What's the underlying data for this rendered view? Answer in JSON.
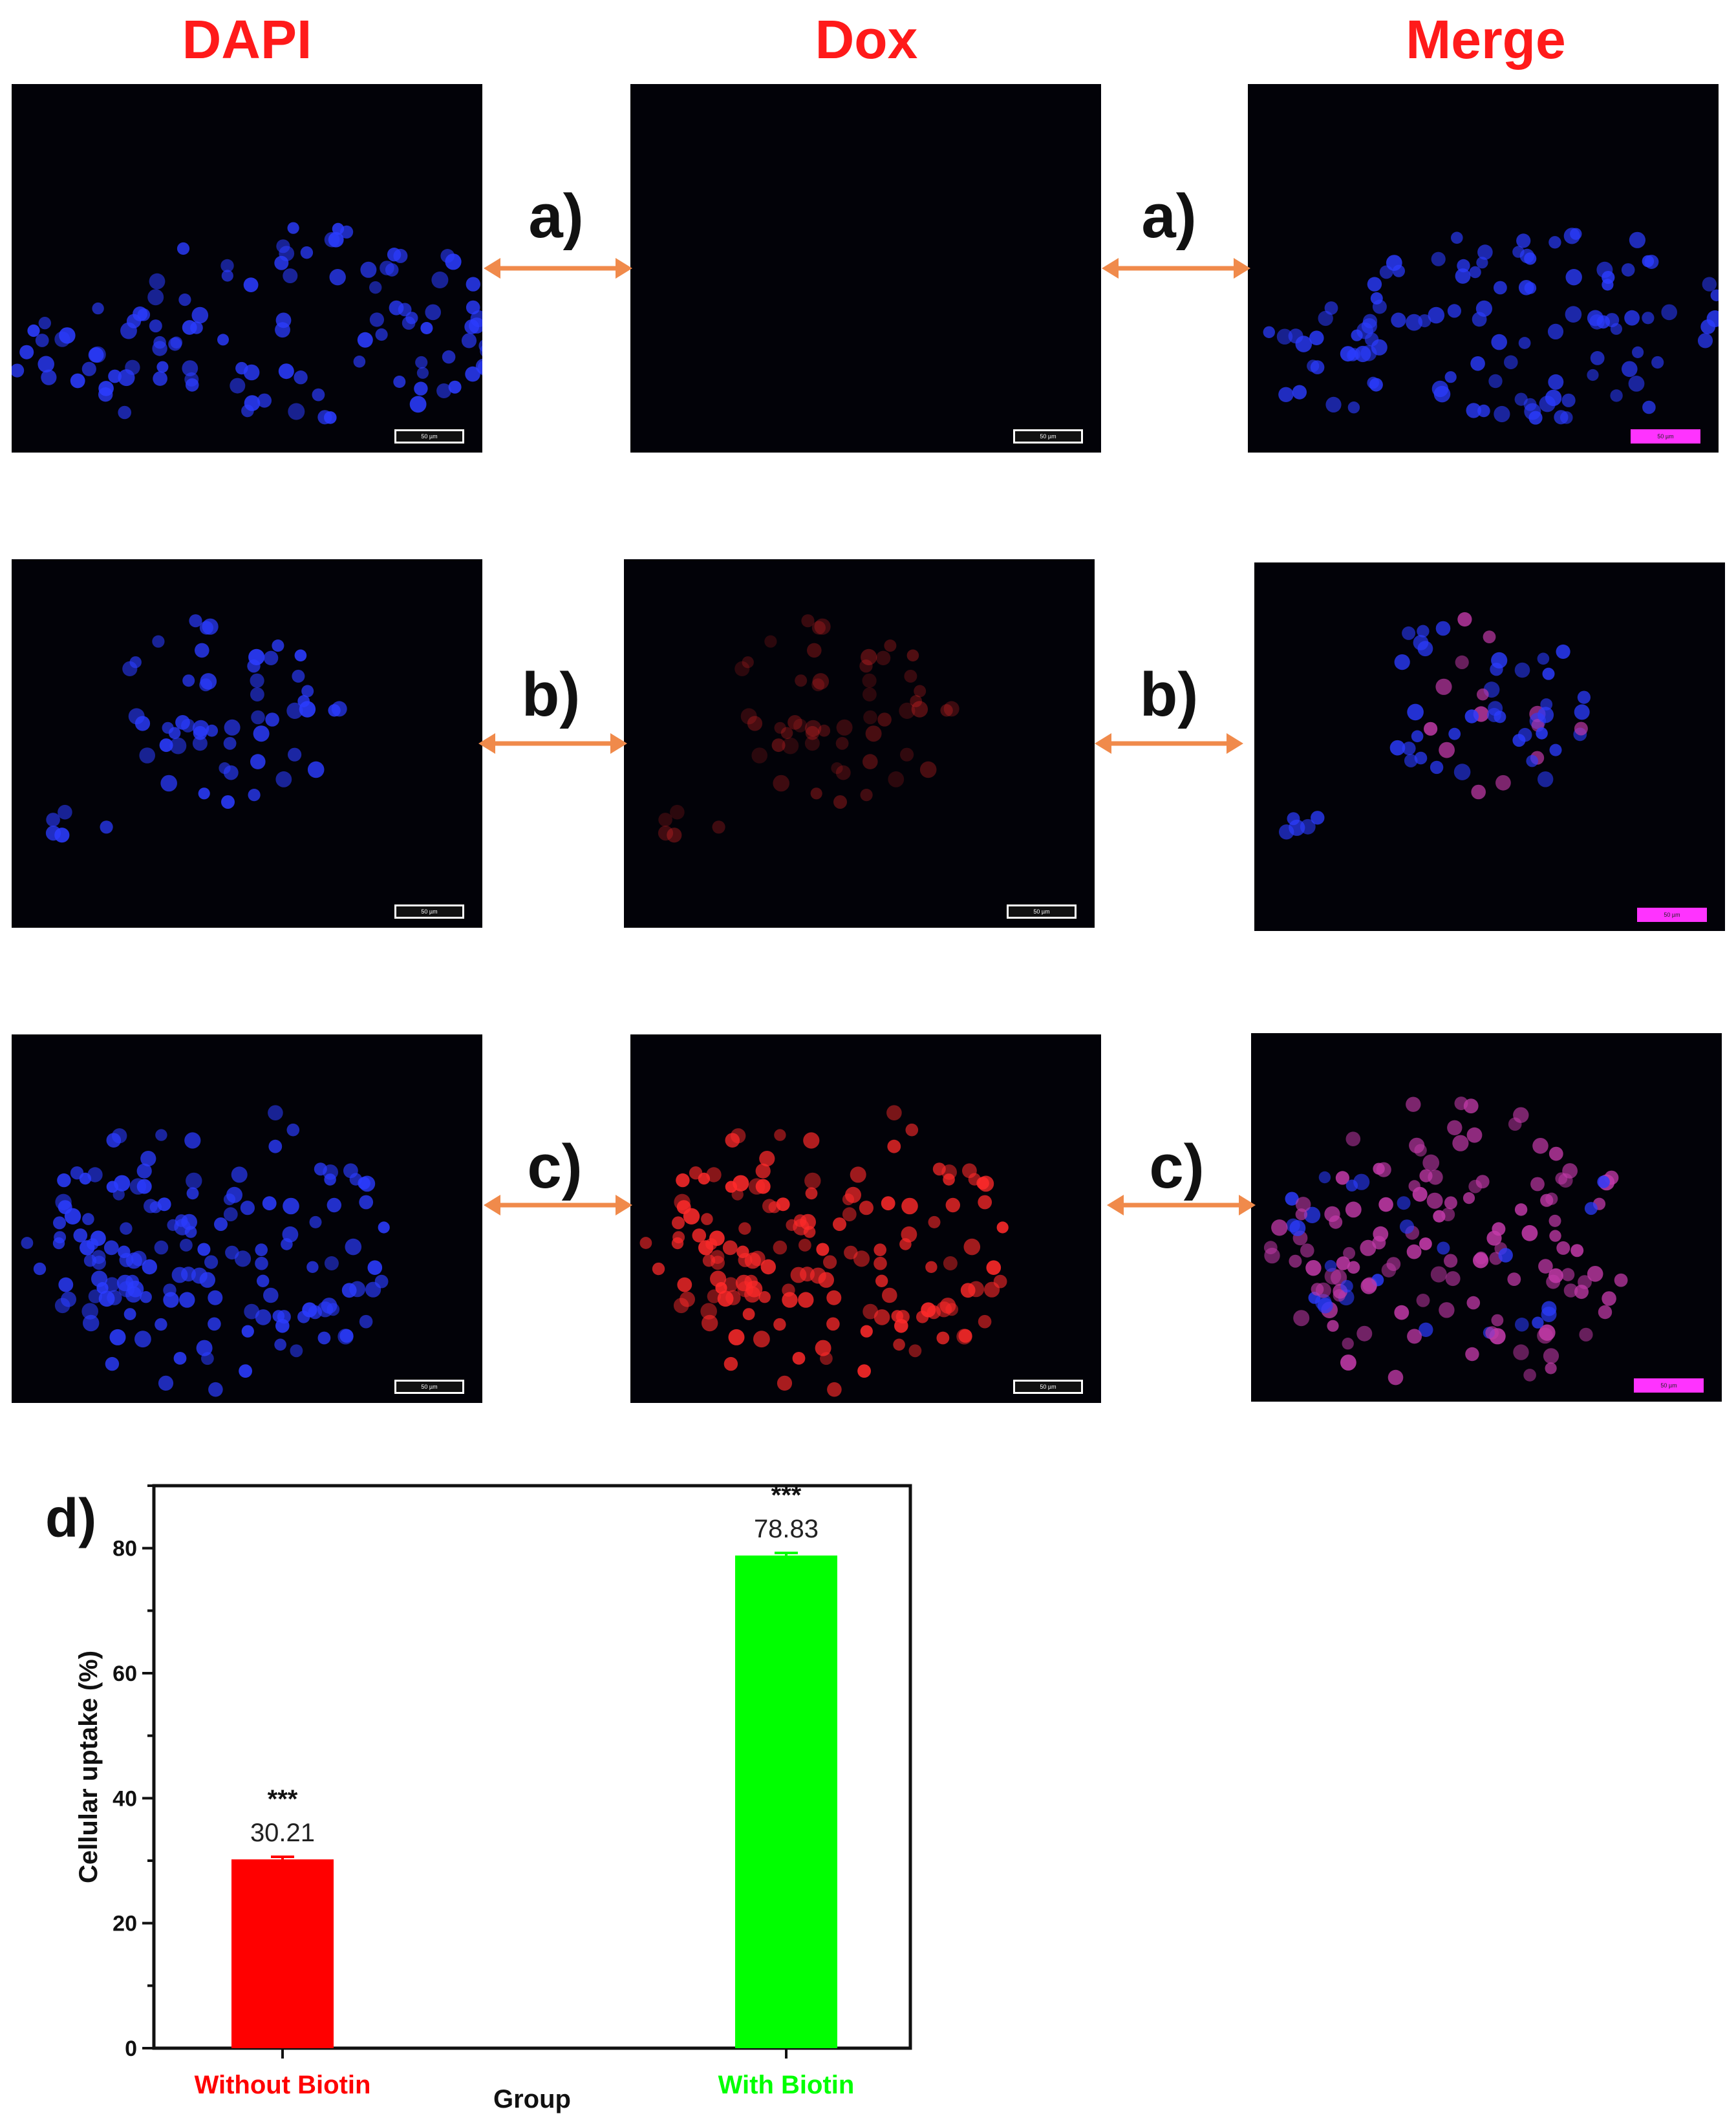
{
  "columns": [
    "DAPI",
    "Dox",
    "Merge"
  ],
  "rows": [
    {
      "label": "a)",
      "dox_intensity": 0.0
    },
    {
      "label": "b)",
      "dox_intensity": 0.35
    },
    {
      "label": "c)",
      "dox_intensity": 1.0
    }
  ],
  "scale_bar_text": "50 µm",
  "panel_d_label": "d)",
  "colors": {
    "title": "#ff1a1a",
    "arrow": "#f08a4b",
    "bar1": "#ff0000",
    "bar2": "#00ff00",
    "dapi": "#2b3cff",
    "dox": "#ff2a2a"
  },
  "chart_data": {
    "type": "bar",
    "categories": [
      "Without Biotin",
      "With Biotin"
    ],
    "values": [
      30.21,
      78.83
    ],
    "value_labels": [
      "30.21",
      "78.83"
    ],
    "significance": [
      "***",
      "***"
    ],
    "bar_colors": [
      "#ff0000",
      "#00ff00"
    ],
    "title": "",
    "xlabel": "Group",
    "ylabel": "Cellular uptake (%)",
    "ylim": [
      0,
      90
    ],
    "yticks": [
      0,
      20,
      40,
      60,
      80
    ]
  }
}
